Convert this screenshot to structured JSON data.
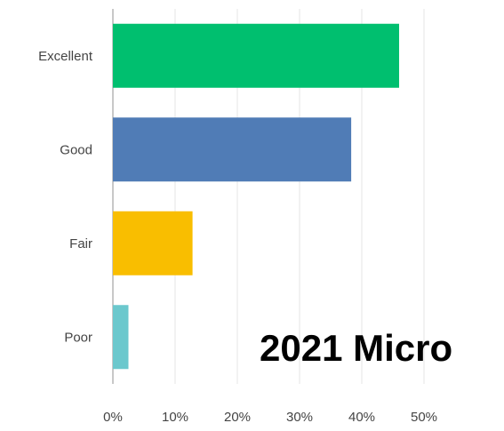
{
  "chart_data": {
    "type": "bar",
    "orientation": "horizontal",
    "categories": [
      "Excellent",
      "Good",
      "Fair",
      "Poor"
    ],
    "values": [
      46,
      38.3,
      12.8,
      2.5
    ],
    "colors": [
      "#00bf6f",
      "#507cb6",
      "#f9be00",
      "#6bc8cd"
    ],
    "xlim": [
      0,
      50
    ],
    "x_ticks": [
      "0%",
      "10%",
      "20%",
      "30%",
      "40%",
      "50%"
    ],
    "grid": true,
    "title": "",
    "xlabel": "",
    "ylabel": ""
  },
  "overlay_text": "2021 Micro"
}
